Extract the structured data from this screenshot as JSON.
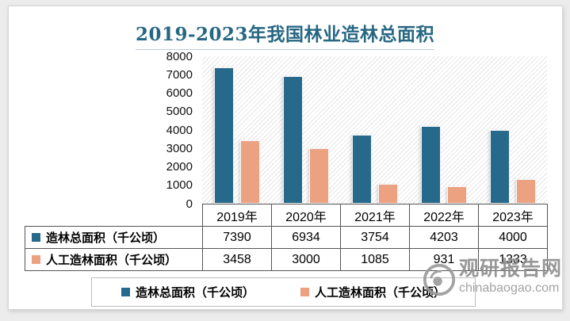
{
  "page": {
    "background": "#ececec",
    "card_background": "#ffffff"
  },
  "chart_data": {
    "type": "bar",
    "title": "2019-2023年我国林业造林总面积",
    "title_color": "#266783",
    "categories": [
      "2019年",
      "2020年",
      "2021年",
      "2022年",
      "2023年"
    ],
    "series": [
      {
        "name": "造林总面积（千公顷）",
        "color": "#26698b",
        "values": [
          7390,
          6934,
          3754,
          4203,
          4000
        ]
      },
      {
        "name": "人工造林面积（千公顷）",
        "color": "#eca181",
        "values": [
          3458,
          3000,
          1085,
          931,
          1333
        ]
      }
    ],
    "ylim": [
      0,
      8000
    ],
    "ytick_step": 1000,
    "ytick_labels": [
      "0",
      "1000",
      "2000",
      "3000",
      "4000",
      "5000",
      "6000",
      "7000",
      "8000"
    ],
    "grid": false,
    "plot_background": "diagonal-hatch",
    "legend_position": "bottom",
    "data_table_shown": true
  },
  "watermark": {
    "name": "观研报告网",
    "domain": "chinabaogao.com",
    "color": "#8c8c8c"
  }
}
